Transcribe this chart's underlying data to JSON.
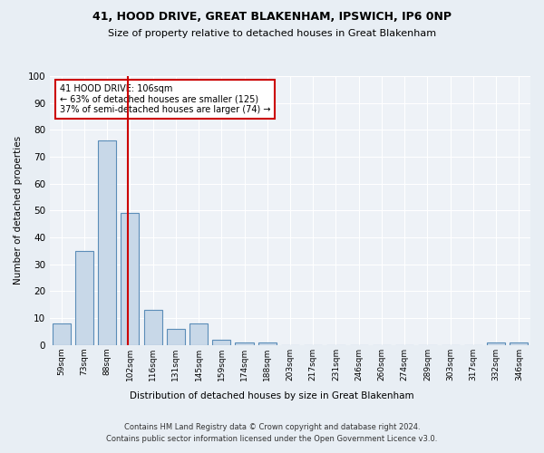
{
  "title1": "41, HOOD DRIVE, GREAT BLAKENHAM, IPSWICH, IP6 0NP",
  "title2": "Size of property relative to detached houses in Great Blakenham",
  "xlabel": "Distribution of detached houses by size in Great Blakenham",
  "ylabel": "Number of detached properties",
  "categories": [
    "59sqm",
    "73sqm",
    "88sqm",
    "102sqm",
    "116sqm",
    "131sqm",
    "145sqm",
    "159sqm",
    "174sqm",
    "188sqm",
    "203sqm",
    "217sqm",
    "231sqm",
    "246sqm",
    "260sqm",
    "274sqm",
    "289sqm",
    "303sqm",
    "317sqm",
    "332sqm",
    "346sqm"
  ],
  "values": [
    8,
    35,
    76,
    49,
    13,
    6,
    8,
    2,
    1,
    1,
    0,
    0,
    0,
    0,
    0,
    0,
    0,
    0,
    0,
    1,
    1
  ],
  "bar_color": "#c8d8e8",
  "bar_edge_color": "#5b8db8",
  "vline_x_index": 3,
  "vline_color": "#cc0000",
  "annotation_box_text": "41 HOOD DRIVE: 106sqm\n← 63% of detached houses are smaller (125)\n37% of semi-detached houses are larger (74) →",
  "annotation_box_color": "#cc0000",
  "ylim": [
    0,
    100
  ],
  "yticks": [
    0,
    10,
    20,
    30,
    40,
    50,
    60,
    70,
    80,
    90,
    100
  ],
  "bg_color": "#e8eef4",
  "plot_bg_color": "#eef2f7",
  "footer": "Contains HM Land Registry data © Crown copyright and database right 2024.\nContains public sector information licensed under the Open Government Licence v3.0."
}
